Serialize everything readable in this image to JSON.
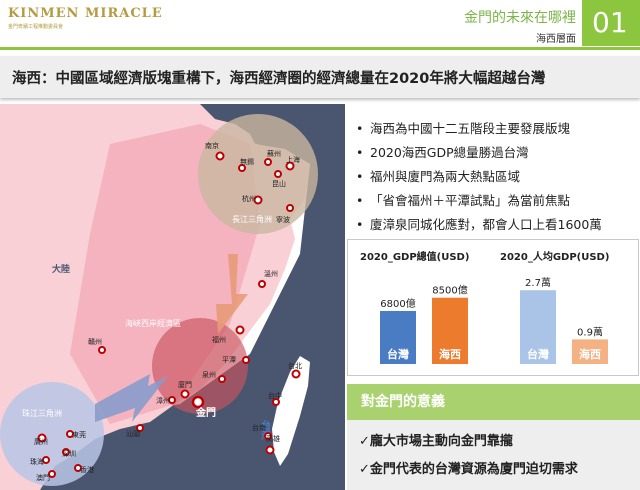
{
  "header": {
    "logo_text": "KINMEN MIRACLE",
    "logo_subtext": "金門奇蹟工程推動委員會",
    "title": "金門的未來在哪裡",
    "subtitle": "海西層面",
    "page_number": "01"
  },
  "slide_title": "海西：中國區域經濟版塊重構下，海西經濟圈的經濟總量在2020年將大幅超越台灣",
  "map": {
    "mainland_label": "大陸",
    "yangtze_region": "長江三角洲",
    "haixi_region": "海峽西岸經濟區",
    "pearl_region": "珠江三角洲",
    "taiwan_label": "台灣",
    "kinmen_label": "金門",
    "cities": [
      "南京",
      "無錫",
      "蘇州",
      "上海",
      "昆山",
      "杭州",
      "寧波",
      "溫州",
      "贛州",
      "福州",
      "平潭",
      "泉州",
      "廈門",
      "漳州",
      "汕頭",
      "廣州",
      "東莞",
      "深圳",
      "珠海",
      "澳門",
      "香港",
      "台北",
      "台中",
      "台南",
      "高雄"
    ]
  },
  "bullets": [
    "海西為中國十二五階段主要發展版塊",
    "2020海西GDP總量勝過台灣",
    "福州與廈門為兩大熱點區域",
    "「省會福州＋平潭試點」為當前焦點",
    "廈漳泉同城化應對，都會人口上看1600萬"
  ],
  "colors": {
    "accent_green": "#8cc63f",
    "taiwan_blue": "#4a7cc4",
    "haixi_orange": "#ed7b2e",
    "taiwan_light": "#a9c4e6",
    "haixi_light": "#f4b183",
    "map_bg": "#4a5670"
  },
  "chart_data": [
    {
      "type": "bar",
      "title": "2020_GDP總值(USD)",
      "categories": [
        "台灣",
        "海西"
      ],
      "values": [
        6800,
        8500
      ],
      "value_labels": [
        "6800億",
        "8500億"
      ],
      "unit": "億"
    },
    {
      "type": "bar",
      "title": "2020_人均GDP(USD)",
      "categories": [
        "台灣",
        "海西"
      ],
      "values": [
        2.7,
        0.9
      ],
      "value_labels": [
        "2.7萬",
        "0.9萬"
      ],
      "unit": "萬"
    }
  ],
  "meaning": {
    "heading": "對金門的意義",
    "items": [
      "✓龐大市場主動向金門靠攏",
      "✓金門代表的台灣資源為廈門迫切需求"
    ]
  }
}
